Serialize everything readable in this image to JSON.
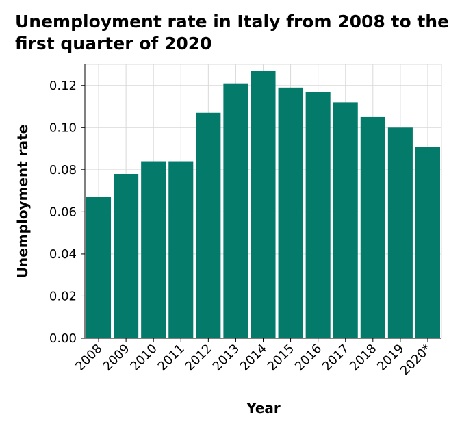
{
  "chart_data": {
    "type": "bar",
    "title": "Unemployment rate in Italy from 2008 to the first quarter of 2020",
    "xlabel": "Year",
    "ylabel": "Unemployment rate",
    "categories": [
      "2008",
      "2009",
      "2010",
      "2011",
      "2012",
      "2013",
      "2014",
      "2015",
      "2016",
      "2017",
      "2018",
      "2019",
      "2020*"
    ],
    "values": [
      0.067,
      0.078,
      0.084,
      0.084,
      0.107,
      0.121,
      0.127,
      0.119,
      0.117,
      0.112,
      0.105,
      0.1,
      0.091
    ],
    "ylim": [
      0,
      0.13
    ],
    "yticks": [
      "0.00",
      "0.02",
      "0.04",
      "0.06",
      "0.08",
      "0.10",
      "0.12"
    ],
    "grid": true,
    "bar_color": "#047a6b",
    "grid_color": "#d9d9d9"
  }
}
